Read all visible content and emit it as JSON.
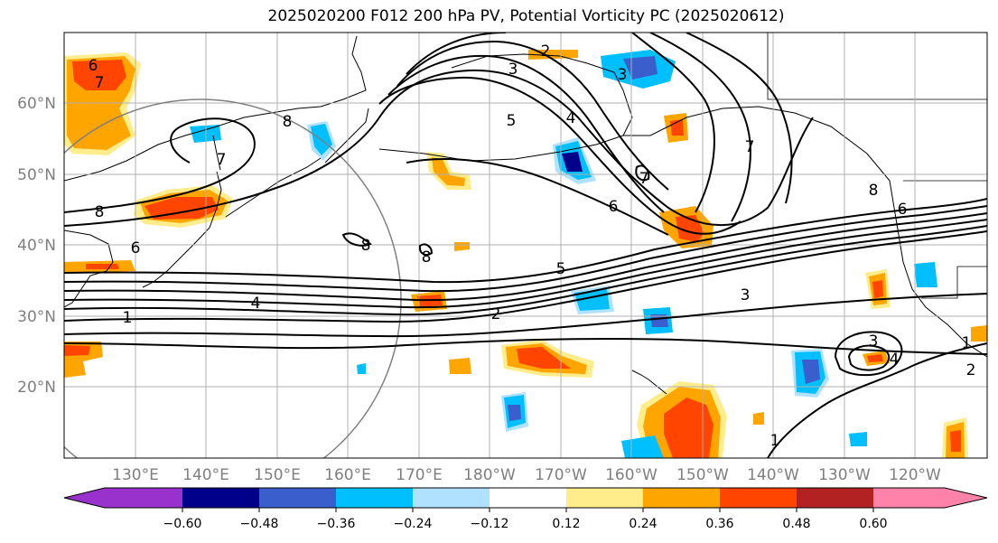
{
  "title": "2025020200 F012 200 hPa PV, Potential Vorticity PC (2025020612)",
  "lat_labels": [
    "60°N",
    "50°N",
    "40°N",
    "30°N",
    "20°N"
  ],
  "lon_labels": [
    "130°E",
    "140°E",
    "150°E",
    "160°E",
    "170°E",
    "180°W",
    "170°W",
    "160°W",
    "150°W",
    "140°W",
    "130°W",
    "120°W"
  ],
  "colorbar": {
    "colors": [
      "#9932cc",
      "#00008b",
      "#3a5fcd",
      "#00bfff",
      "#b0e2ff",
      "#ffffff",
      "#ffec8b",
      "#ffa500",
      "#ff4500",
      "#b22222",
      "#ff82ab"
    ],
    "tick_labels": [
      "−0.60",
      "−0.48",
      "−0.36",
      "−0.24",
      "−0.12",
      "0.12",
      "0.24",
      "0.36",
      "0.48",
      "0.60"
    ]
  },
  "contour_labels": [
    "6",
    "7",
    "8",
    "8",
    "7",
    "6",
    "8",
    "8",
    "4",
    "1",
    "2",
    "3",
    "4",
    "5",
    "3",
    "6",
    "7",
    "8",
    "6",
    "5",
    "3",
    "2",
    "3",
    "1",
    "1",
    "2",
    "4",
    "7"
  ]
}
